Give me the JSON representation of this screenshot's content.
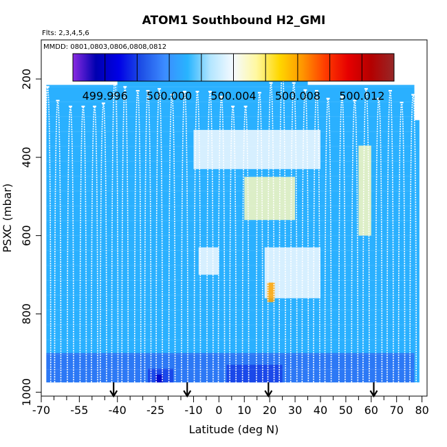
{
  "chart_data": {
    "type": "heatmap",
    "title": "ATOM1 Southbound H2_GMI",
    "flights_label": "Flts: 2,3,4,5,6",
    "dates_label": "MMDD: 0801,0803,0806,0808,0812",
    "xlabel": "Latitude (deg N)",
    "ylabel": "PSXC (mbar)",
    "xlim": [
      -70,
      82
    ],
    "ylim": [
      1010,
      100
    ],
    "x_ticks": [
      -70,
      -55,
      -40,
      -25,
      -10,
      0,
      10,
      20,
      30,
      40,
      50,
      60,
      70,
      80
    ],
    "x_minor_ticks": [
      -65,
      -60,
      -50,
      -45,
      -35,
      -30,
      -20,
      -15,
      -5,
      5,
      15,
      25,
      35,
      45,
      55,
      65,
      75
    ],
    "y_ticks": [
      200,
      400,
      600,
      800,
      1000
    ],
    "colorbar": {
      "min": 499.994,
      "max": 500.014,
      "tick_values": [
        499.996,
        500.0,
        500.004,
        500.008,
        500.012
      ],
      "tick_labels": [
        "499.996",
        "500.000",
        "500.004",
        "500.008",
        "500.012"
      ],
      "segment_boundaries": [
        499.996,
        499.998,
        500.0,
        500.002,
        500.004,
        500.006,
        500.008,
        500.01,
        500.012
      ],
      "colors": [
        "#8a2be2",
        "#0000b0",
        "#0000e6",
        "#1e50e6",
        "#3c8cff",
        "#28b4ff",
        "#b4e6ff",
        "#f5faff",
        "#fff8a0",
        "#ffd700",
        "#ff9600",
        "#ff3c00",
        "#e60000",
        "#b40000",
        "#962828"
      ]
    },
    "arrow_latitudes": [
      -41.5,
      -12.5,
      19.5,
      61
    ],
    "profile_tops_mbar": [
      {
        "lat": -67.5,
        "top": 220
      },
      {
        "lat": -63.5,
        "top": 255
      },
      {
        "lat": -58.5,
        "top": 270
      },
      {
        "lat": -53.5,
        "top": 270
      },
      {
        "lat": -49,
        "top": 270
      },
      {
        "lat": -45.5,
        "top": 262
      },
      {
        "lat": -41,
        "top": 195
      },
      {
        "lat": -37,
        "top": 220
      },
      {
        "lat": -32,
        "top": 230
      },
      {
        "lat": -28,
        "top": 230
      },
      {
        "lat": -23.5,
        "top": 225
      },
      {
        "lat": -18.5,
        "top": 240
      },
      {
        "lat": -13.5,
        "top": 232
      },
      {
        "lat": -8.5,
        "top": 232
      },
      {
        "lat": -3.5,
        "top": 232
      },
      {
        "lat": 1,
        "top": 245
      },
      {
        "lat": 5.5,
        "top": 270
      },
      {
        "lat": 10.5,
        "top": 270
      },
      {
        "lat": 16,
        "top": 235
      },
      {
        "lat": 20.5,
        "top": 210
      },
      {
        "lat": 25,
        "top": 175
      },
      {
        "lat": 29.5,
        "top": 210
      },
      {
        "lat": 34,
        "top": 228
      },
      {
        "lat": 38.5,
        "top": 230
      },
      {
        "lat": 43,
        "top": 250
      },
      {
        "lat": 48.5,
        "top": 245
      },
      {
        "lat": 53.5,
        "top": 255
      },
      {
        "lat": 58,
        "top": 225
      },
      {
        "lat": 63,
        "top": 250
      },
      {
        "lat": 67.5,
        "top": 230
      },
      {
        "lat": 72,
        "top": 260
      },
      {
        "lat": 76.5,
        "top": 240
      }
    ],
    "field_blocks": [
      {
        "lat0": -68,
        "lat1": -40,
        "p0": 215,
        "p1": 975,
        "value": 500.001
      },
      {
        "lat0": -40,
        "lat1": 35,
        "p0": 165,
        "p1": 975,
        "value": 500.001
      },
      {
        "lat0": 35,
        "lat1": 77,
        "p0": 215,
        "p1": 975,
        "value": 500.001
      },
      {
        "lat0": 77,
        "lat1": 79,
        "p0": 305,
        "p1": 975,
        "value": 500.001
      },
      {
        "lat0": -10,
        "lat1": 40,
        "p0": 330,
        "p1": 430,
        "value": 500.004
      },
      {
        "lat0": 10,
        "lat1": 30,
        "p0": 450,
        "p1": 560,
        "value": 500.005
      },
      {
        "lat0": 55,
        "lat1": 60,
        "p0": 370,
        "p1": 600,
        "value": 500.005
      },
      {
        "lat0": 18,
        "lat1": 40,
        "p0": 630,
        "p1": 760,
        "value": 500.004
      },
      {
        "lat0": 19,
        "lat1": 22,
        "p0": 720,
        "p1": 770,
        "value": 500.008
      },
      {
        "lat0": -8,
        "lat1": 0,
        "p0": 630,
        "p1": 700,
        "value": 500.004
      },
      {
        "lat0": -68,
        "lat1": 77,
        "p0": 900,
        "p1": 975,
        "value": 499.999
      },
      {
        "lat0": 3,
        "lat1": 25,
        "p0": 930,
        "p1": 975,
        "value": 499.998
      },
      {
        "lat0": -28,
        "lat1": -18,
        "p0": 940,
        "p1": 975,
        "value": 499.998
      },
      {
        "lat0": -25,
        "lat1": -22,
        "p0": 955,
        "p1": 975,
        "value": 499.996
      }
    ]
  }
}
